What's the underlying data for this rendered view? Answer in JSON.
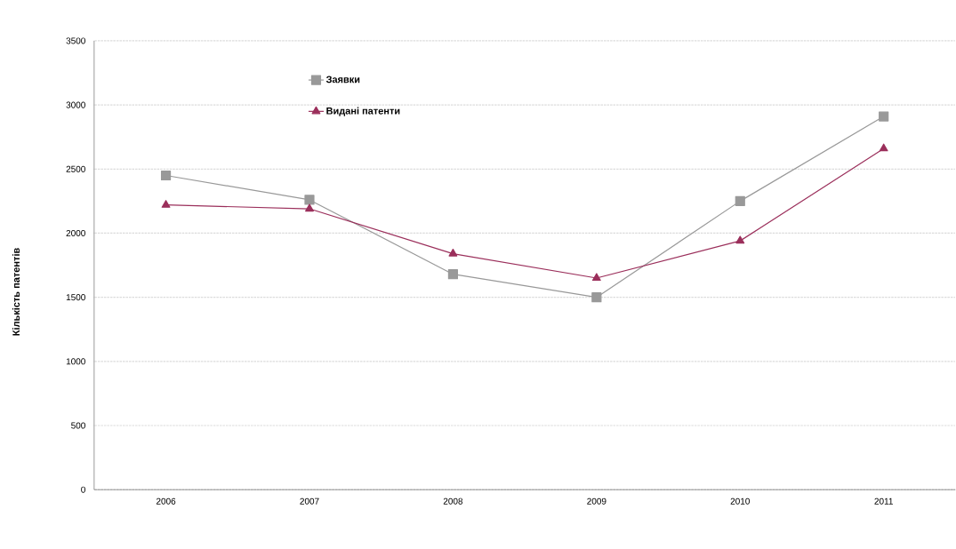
{
  "chart_data": {
    "type": "line",
    "ylabel": "Кількість патентів",
    "categories": [
      "2006",
      "2007",
      "2008",
      "2009",
      "2010",
      "2011"
    ],
    "series": [
      {
        "name": "Заявки",
        "color": "#999999",
        "marker": "square",
        "values": [
          2450,
          2260,
          1680,
          1500,
          2250,
          2910
        ]
      },
      {
        "name": "Видані патенти",
        "color": "#9b2f5b",
        "marker": "triangle",
        "values": [
          2220,
          2190,
          1840,
          1650,
          1940,
          2660
        ]
      }
    ],
    "ylim": [
      0,
      3500
    ],
    "yticks": [
      0,
      500,
      1000,
      1500,
      2000,
      2500,
      3000,
      3500
    ],
    "grid": "y",
    "legend": "top left",
    "line_style": "solid"
  }
}
